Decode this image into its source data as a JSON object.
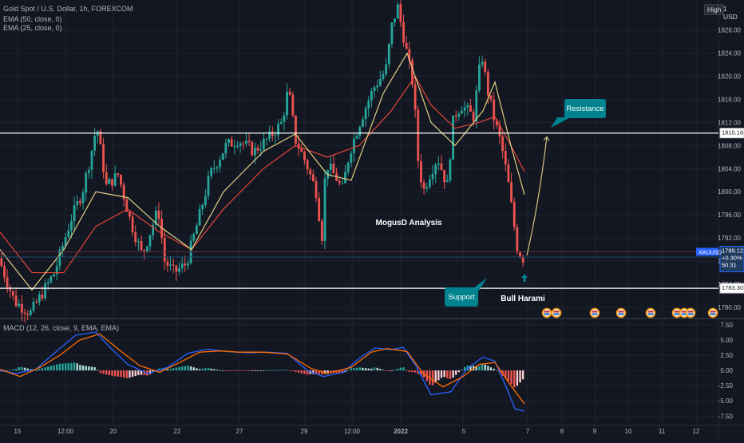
{
  "header": {
    "symbol_title": "Gold Spot / U.S. Dollar, 1h, FOREXCOM",
    "ema1": "EMA (50, close, 0)",
    "ema2": "EMA (25, close, 0)",
    "macd_title": "MACD (12, 26, close, 9, EMA, EMA)",
    "btn_high": "High",
    "btn_unit": "1 USD"
  },
  "price_axis": {
    "ticks": [
      "1828.00",
      "1824.00",
      "1820.00",
      "1816.00",
      "1812.00",
      "1808.00",
      "1804.00",
      "1800.00",
      "1796.00",
      "1792.00",
      "1788.00",
      "1784.00",
      "1780.00"
    ],
    "tick_values": [
      1828,
      1824,
      1820,
      1816,
      1812,
      1808,
      1804,
      1800,
      1796,
      1792,
      1788,
      1784,
      1780
    ],
    "range": [
      1778.2,
      1833.2
    ]
  },
  "macd_axis": {
    "ticks": [
      "7.50",
      "5.00",
      "2.50",
      "0.00",
      "-2.50",
      "-5.00",
      "-7.50"
    ],
    "tick_values": [
      7.5,
      5,
      2.5,
      0,
      -2.5,
      -5,
      -7.5
    ],
    "range": [
      -8.9,
      8.4
    ]
  },
  "time_axis": {
    "labels": [
      "15",
      "12:00",
      "20",
      "22",
      "27",
      "29",
      "12:00",
      "2022",
      "5",
      "7",
      "8",
      "9",
      "10",
      "11",
      "12"
    ]
  },
  "price_labels": {
    "resistance": "1810.16",
    "support": "1783.30",
    "symbol": "XAUUSD",
    "last": "1789.12",
    "change": "+0.30%",
    "countdown": "50:31"
  },
  "annotations": {
    "title": "MogusD Analysis",
    "resistance": "Resistance",
    "support": "Support",
    "pattern": "Bull Harami"
  },
  "colors": {
    "background": "#131722",
    "up": "#26a69a",
    "down": "#ef5350",
    "ema50": "#e2443a",
    "ema25": "#e2cf83",
    "macd": "#2962ff",
    "signal": "#ff6d00",
    "callout": "#00838f",
    "level_line": "#ffffff"
  },
  "events": {
    "icon": "us-flag-icon",
    "count": 9
  },
  "chart_data": {
    "type": "candlestick",
    "symbol": "XAUUSD",
    "timeframe": "1h",
    "ylim": [
      1778.2,
      1833.2
    ],
    "levels": [
      {
        "name": "Resistance",
        "value": 1810.16
      },
      {
        "name": "Support",
        "value": 1783.3
      }
    ],
    "last_price": 1789.12,
    "path_waypoints": [
      [
        0,
        1788.5
      ],
      [
        20,
        1781
      ],
      [
        40,
        1779
      ],
      [
        70,
        1786
      ],
      [
        90,
        1795
      ],
      [
        105,
        1800
      ],
      [
        115,
        1806
      ],
      [
        123,
        1811.5
      ],
      [
        135,
        1801
      ],
      [
        150,
        1803
      ],
      [
        165,
        1795
      ],
      [
        180,
        1789
      ],
      [
        190,
        1793
      ],
      [
        200,
        1797
      ],
      [
        208,
        1788
      ],
      [
        220,
        1786
      ],
      [
        235,
        1787.5
      ],
      [
        250,
        1795
      ],
      [
        265,
        1803
      ],
      [
        285,
        1808
      ],
      [
        300,
        1809
      ],
      [
        320,
        1807
      ],
      [
        340,
        1809.5
      ],
      [
        355,
        1812
      ],
      [
        363,
        1818
      ],
      [
        372,
        1809
      ],
      [
        385,
        1805
      ],
      [
        398,
        1800
      ],
      [
        405,
        1792
      ],
      [
        410,
        1805
      ],
      [
        425,
        1802
      ],
      [
        430,
        1800
      ],
      [
        440,
        1807
      ],
      [
        455,
        1813
      ],
      [
        470,
        1818
      ],
      [
        485,
        1821
      ],
      [
        493,
        1829
      ],
      [
        500,
        1832
      ],
      [
        510,
        1825
      ],
      [
        520,
        1818
      ],
      [
        525,
        1806
      ],
      [
        532,
        1800
      ],
      [
        540,
        1803
      ],
      [
        550,
        1806
      ],
      [
        562,
        1801
      ],
      [
        570,
        1813
      ],
      [
        580,
        1815
      ],
      [
        595,
        1813
      ],
      [
        605,
        1824
      ],
      [
        612,
        1818
      ],
      [
        620,
        1813
      ],
      [
        630,
        1808
      ],
      [
        638,
        1802
      ],
      [
        645,
        1795
      ],
      [
        650,
        1790
      ],
      [
        657,
        1788.5
      ]
    ],
    "ema50_points": [
      [
        0,
        1793
      ],
      [
        40,
        1786
      ],
      [
        80,
        1786
      ],
      [
        120,
        1794
      ],
      [
        160,
        1797
      ],
      [
        200,
        1793
      ],
      [
        240,
        1790
      ],
      [
        280,
        1797
      ],
      [
        330,
        1804
      ],
      [
        370,
        1808
      ],
      [
        410,
        1806
      ],
      [
        450,
        1808
      ],
      [
        490,
        1814
      ],
      [
        520,
        1820
      ],
      [
        540,
        1815
      ],
      [
        570,
        1811
      ],
      [
        600,
        1812
      ],
      [
        620,
        1813
      ],
      [
        640,
        1808
      ],
      [
        657,
        1803.5
      ]
    ],
    "ema25_points": [
      [
        0,
        1790
      ],
      [
        40,
        1783
      ],
      [
        80,
        1790
      ],
      [
        120,
        1800
      ],
      [
        160,
        1799
      ],
      [
        200,
        1794
      ],
      [
        240,
        1790
      ],
      [
        280,
        1800
      ],
      [
        330,
        1807
      ],
      [
        370,
        1810
      ],
      [
        410,
        1803
      ],
      [
        440,
        1802
      ],
      [
        480,
        1817
      ],
      [
        510,
        1824
      ],
      [
        540,
        1812
      ],
      [
        570,
        1808
      ],
      [
        605,
        1814
      ],
      [
        620,
        1819
      ],
      [
        640,
        1808
      ],
      [
        657,
        1799.5
      ]
    ],
    "projection": [
      [
        660,
        1789
      ],
      [
        685,
        1809.5
      ]
    ],
    "macd_macd": [
      [
        0,
        0
      ],
      [
        20,
        -0.5
      ],
      [
        45,
        0.2
      ],
      [
        65,
        2.5
      ],
      [
        95,
        5.8
      ],
      [
        120,
        6.3
      ],
      [
        140,
        3.5
      ],
      [
        160,
        1
      ],
      [
        185,
        -0.5
      ],
      [
        210,
        0.5
      ],
      [
        235,
        2.8
      ],
      [
        260,
        3.5
      ],
      [
        285,
        3.1
      ],
      [
        310,
        2.9
      ],
      [
        335,
        3
      ],
      [
        360,
        2.8
      ],
      [
        385,
        0
      ],
      [
        405,
        -1
      ],
      [
        430,
        -0.3
      ],
      [
        450,
        2
      ],
      [
        470,
        3.7
      ],
      [
        490,
        3.4
      ],
      [
        505,
        3.8
      ],
      [
        520,
        1
      ],
      [
        540,
        -4
      ],
      [
        565,
        -3.5
      ],
      [
        585,
        0.3
      ],
      [
        605,
        2.2
      ],
      [
        620,
        1.5
      ],
      [
        635,
        -3
      ],
      [
        645,
        -6.3
      ],
      [
        657,
        -6.7
      ]
    ],
    "macd_signal": [
      [
        0,
        0.2
      ],
      [
        25,
        -1
      ],
      [
        50,
        0.5
      ],
      [
        75,
        2.5
      ],
      [
        100,
        5
      ],
      [
        125,
        6
      ],
      [
        150,
        3.3
      ],
      [
        175,
        0.8
      ],
      [
        200,
        -0.3
      ],
      [
        225,
        1.3
      ],
      [
        250,
        3
      ],
      [
        275,
        3.2
      ],
      [
        300,
        3
      ],
      [
        330,
        3
      ],
      [
        360,
        2.7
      ],
      [
        390,
        0.3
      ],
      [
        410,
        -0.5
      ],
      [
        440,
        0.5
      ],
      [
        465,
        3
      ],
      [
        485,
        3.6
      ],
      [
        510,
        3.1
      ],
      [
        530,
        -0.5
      ],
      [
        555,
        -2.7
      ],
      [
        580,
        -1
      ],
      [
        600,
        1
      ],
      [
        620,
        1.3
      ],
      [
        640,
        -2.5
      ],
      [
        657,
        -5.5
      ]
    ]
  }
}
